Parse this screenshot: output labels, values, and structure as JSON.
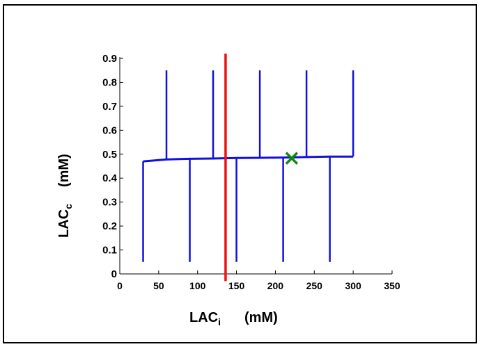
{
  "chart_data": {
    "type": "line",
    "xlabel": {
      "main": "LAC",
      "sub": "i",
      "unit": "(mM)"
    },
    "ylabel": {
      "main": "LAC",
      "sub": "c",
      "unit": "(mM)"
    },
    "xlim": [
      0,
      350
    ],
    "ylim": [
      0,
      0.9
    ],
    "x_ticks": [
      "0",
      "50",
      "100",
      "150",
      "200",
      "250",
      "300",
      "350"
    ],
    "y_ticks": [
      "0",
      "0.1",
      "0.2",
      "0.3",
      "0.4",
      "0.5",
      "0.6",
      "0.7",
      "0.8",
      "0.9"
    ],
    "grid": false,
    "baseline_curve": {
      "color": "#1010e0",
      "x": [
        30,
        60,
        90,
        120,
        150,
        180,
        210,
        240,
        270,
        300
      ],
      "y": [
        0.47,
        0.478,
        0.481,
        0.482,
        0.484,
        0.485,
        0.486,
        0.488,
        0.49,
        0.49
      ]
    },
    "vertical_segments": {
      "color": "#1010e0",
      "lines": [
        {
          "x": 30,
          "y_from": 0.05,
          "y_to": 0.47
        },
        {
          "x": 60,
          "y_from": 0.478,
          "y_to": 0.85
        },
        {
          "x": 90,
          "y_from": 0.05,
          "y_to": 0.481
        },
        {
          "x": 120,
          "y_from": 0.482,
          "y_to": 0.85
        },
        {
          "x": 150,
          "y_from": 0.05,
          "y_to": 0.484
        },
        {
          "x": 180,
          "y_from": 0.485,
          "y_to": 0.85
        },
        {
          "x": 210,
          "y_from": 0.05,
          "y_to": 0.486
        },
        {
          "x": 240,
          "y_from": 0.488,
          "y_to": 0.85
        },
        {
          "x": 270,
          "y_from": 0.05,
          "y_to": 0.49
        },
        {
          "x": 300,
          "y_from": 0.49,
          "y_to": 0.85
        }
      ]
    },
    "red_line": {
      "color": "#ee1111",
      "x": 136,
      "y_from": -0.03,
      "y_to": 0.92
    },
    "marker": {
      "symbol": "x",
      "color": "#118811",
      "x": 221,
      "y": 0.483
    }
  }
}
